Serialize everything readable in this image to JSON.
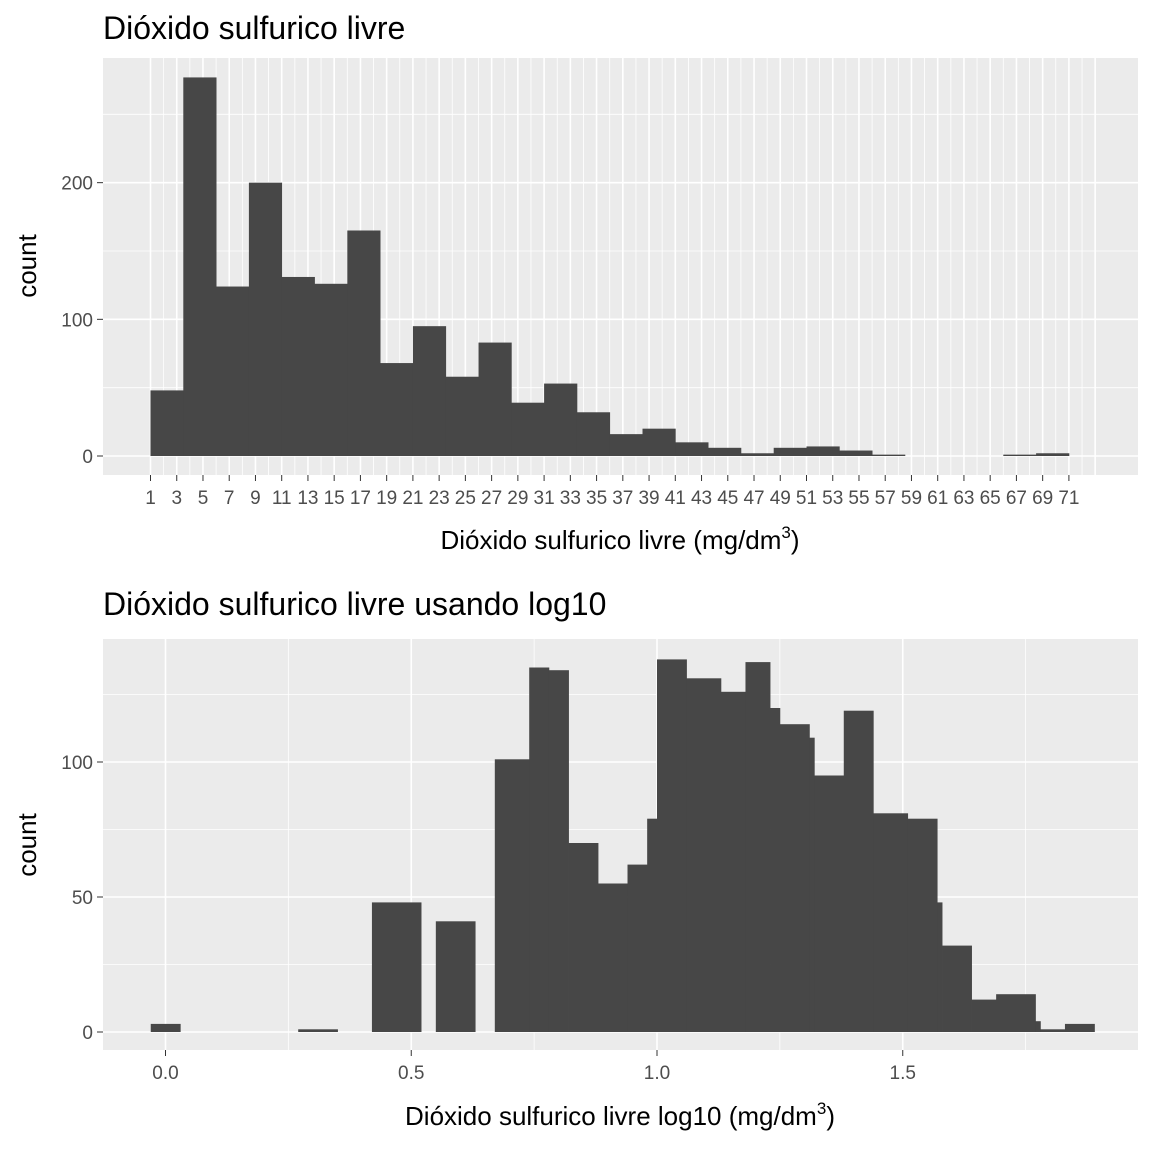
{
  "colors": {
    "panel_background": "#ebebeb",
    "grid_major": "#ffffff",
    "bar_fill": "#474747",
    "tick_text": "#4d4d4d"
  },
  "chart_data": [
    {
      "type": "bar",
      "title": "Dióxido sulfurico livre",
      "xlabel": "Dióxido sulfurico livre (mg/dm",
      "xlabel_superscript": "3",
      "xlabel_close": ")",
      "ylabel": "count",
      "x_ticks": [
        "1",
        "3",
        "5",
        "7",
        "9",
        "11",
        "13",
        "15",
        "17",
        "19",
        "21",
        "23",
        "25",
        "27",
        "29",
        "31",
        "33",
        "35",
        "37",
        "39",
        "41",
        "43",
        "45",
        "47",
        "49",
        "51",
        "53",
        "55",
        "57",
        "59",
        "61",
        "63",
        "65",
        "67",
        "69",
        "71"
      ],
      "y_ticks": [
        0,
        100,
        200
      ],
      "ylim": [
        0,
        280
      ],
      "grid": true,
      "bars": [
        {
          "x0": 1.0,
          "x1": 3.5,
          "count": 48
        },
        {
          "x0": 3.5,
          "x1": 6.0,
          "count": 277
        },
        {
          "x0": 6.0,
          "x1": 8.5,
          "count": 124
        },
        {
          "x0": 8.5,
          "x1": 11.0,
          "count": 200
        },
        {
          "x0": 11.0,
          "x1": 13.5,
          "count": 131
        },
        {
          "x0": 13.5,
          "x1": 16.0,
          "count": 126
        },
        {
          "x0": 16.0,
          "x1": 18.5,
          "count": 165
        },
        {
          "x0": 18.5,
          "x1": 21.0,
          "count": 68
        },
        {
          "x0": 21.0,
          "x1": 23.5,
          "count": 95
        },
        {
          "x0": 23.5,
          "x1": 26.0,
          "count": 58
        },
        {
          "x0": 26.0,
          "x1": 28.5,
          "count": 83
        },
        {
          "x0": 28.5,
          "x1": 31.0,
          "count": 39
        },
        {
          "x0": 31.0,
          "x1": 33.5,
          "count": 53
        },
        {
          "x0": 33.5,
          "x1": 36.0,
          "count": 32
        },
        {
          "x0": 36.0,
          "x1": 38.5,
          "count": 16
        },
        {
          "x0": 38.5,
          "x1": 41.0,
          "count": 20
        },
        {
          "x0": 41.0,
          "x1": 43.5,
          "count": 10
        },
        {
          "x0": 43.5,
          "x1": 46.0,
          "count": 6
        },
        {
          "x0": 46.0,
          "x1": 48.5,
          "count": 2
        },
        {
          "x0": 48.5,
          "x1": 51.0,
          "count": 6
        },
        {
          "x0": 51.0,
          "x1": 53.5,
          "count": 7
        },
        {
          "x0": 53.5,
          "x1": 56.0,
          "count": 4
        },
        {
          "x0": 56.0,
          "x1": 58.5,
          "count": 1
        },
        {
          "x0": 58.5,
          "x1": 61.0,
          "count": 0
        },
        {
          "x0": 61.0,
          "x1": 63.5,
          "count": 0
        },
        {
          "x0": 63.5,
          "x1": 66.0,
          "count": 0
        },
        {
          "x0": 66.0,
          "x1": 68.5,
          "count": 1
        },
        {
          "x0": 68.5,
          "x1": 71.0,
          "count": 2
        }
      ]
    },
    {
      "type": "bar",
      "title": "Dióxido sulfurico livre usando log10",
      "xlabel": "Dióxido sulfurico livre log10 (mg/dm",
      "xlabel_superscript": "3",
      "xlabel_close": ")",
      "ylabel": "count",
      "x_ticks": [
        "0.0",
        "0.5",
        "1.0",
        "1.5"
      ],
      "y_ticks": [
        0,
        50,
        100
      ],
      "xlim": [
        -0.13,
        1.98
      ],
      "ylim": [
        0,
        142
      ],
      "grid": true,
      "bars": [
        {
          "x0": -0.03,
          "x1": 0.03,
          "count": 3
        },
        {
          "x0": 0.27,
          "x1": 0.35,
          "count": 1
        },
        {
          "x0": 0.42,
          "x1": 0.52,
          "count": 48
        },
        {
          "x0": 0.55,
          "x1": 0.63,
          "count": 41
        },
        {
          "x0": 0.67,
          "x1": 0.74,
          "count": 101
        },
        {
          "x0": 0.74,
          "x1": 0.78,
          "count": 135
        },
        {
          "x0": 0.78,
          "x1": 0.82,
          "count": 134
        },
        {
          "x0": 0.82,
          "x1": 0.88,
          "count": 70
        },
        {
          "x0": 0.88,
          "x1": 0.94,
          "count": 55
        },
        {
          "x0": 0.94,
          "x1": 0.98,
          "count": 62
        },
        {
          "x0": 0.98,
          "x1": 1.0,
          "count": 79
        },
        {
          "x0": 1.0,
          "x1": 1.06,
          "count": 138
        },
        {
          "x0": 1.06,
          "x1": 1.13,
          "count": 131
        },
        {
          "x0": 1.13,
          "x1": 1.18,
          "count": 126
        },
        {
          "x0": 1.18,
          "x1": 1.23,
          "count": 137
        },
        {
          "x0": 1.23,
          "x1": 1.25,
          "count": 120
        },
        {
          "x0": 1.25,
          "x1": 1.31,
          "count": 114
        },
        {
          "x0": 1.31,
          "x1": 1.32,
          "count": 109
        },
        {
          "x0": 1.32,
          "x1": 1.38,
          "count": 95
        },
        {
          "x0": 1.38,
          "x1": 1.44,
          "count": 119
        },
        {
          "x0": 1.44,
          "x1": 1.51,
          "count": 81
        },
        {
          "x0": 1.51,
          "x1": 1.57,
          "count": 79
        },
        {
          "x0": 1.57,
          "x1": 1.58,
          "count": 48
        },
        {
          "x0": 1.58,
          "x1": 1.64,
          "count": 32
        },
        {
          "x0": 1.64,
          "x1": 1.69,
          "count": 12
        },
        {
          "x0": 1.69,
          "x1": 1.77,
          "count": 14
        },
        {
          "x0": 1.77,
          "x1": 1.78,
          "count": 4
        },
        {
          "x0": 1.78,
          "x1": 1.83,
          "count": 1
        },
        {
          "x0": 1.83,
          "x1": 1.89,
          "count": 3
        }
      ]
    }
  ]
}
